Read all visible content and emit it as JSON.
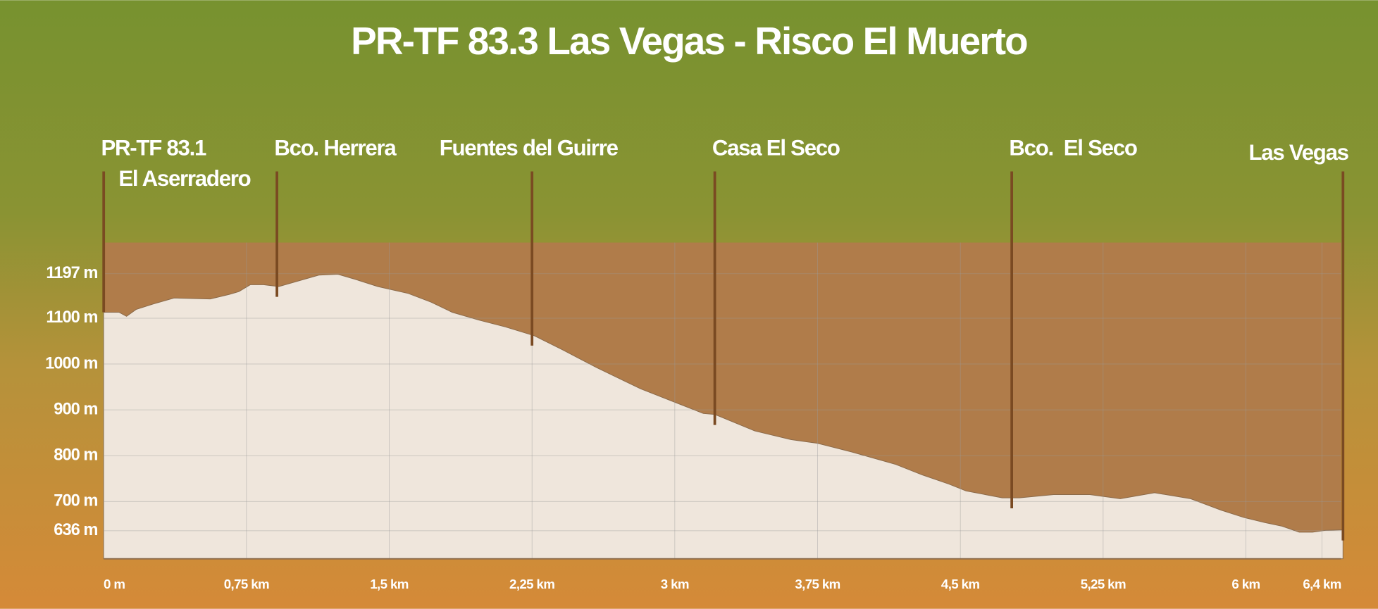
{
  "chart_data": {
    "type": "area",
    "title": "PR-TF 83.3 Las Vegas - Risco El Muerto",
    "xlim": [
      0,
      6.5
    ],
    "ylim": [
      575,
      1265
    ],
    "xticks": [
      {
        "value": 0,
        "label": "0 m"
      },
      {
        "value": 0.75,
        "label": "0,75 km"
      },
      {
        "value": 1.5,
        "label": "1,5 km"
      },
      {
        "value": 2.25,
        "label": "2,25 km"
      },
      {
        "value": 3,
        "label": "3 km"
      },
      {
        "value": 3.75,
        "label": "3,75 km"
      },
      {
        "value": 4.5,
        "label": "4,5 km"
      },
      {
        "value": 5.25,
        "label": "5,25 km"
      },
      {
        "value": 6,
        "label": "6 km"
      },
      {
        "value": 6.4,
        "label": "6,4 km"
      }
    ],
    "yticks": [
      {
        "value": 636,
        "label": "636 m"
      },
      {
        "value": 700,
        "label": "700 m"
      },
      {
        "value": 800,
        "label": "800 m"
      },
      {
        "value": 900,
        "label": "900 m"
      },
      {
        "value": 1000,
        "label": "1000 m"
      },
      {
        "value": 1100,
        "label": "1100 m"
      },
      {
        "value": 1197,
        "label": "1197 m"
      }
    ],
    "grid": true,
    "x": [
      0,
      0.08,
      0.12,
      0.17,
      0.26,
      0.37,
      0.56,
      0.66,
      0.71,
      0.77,
      0.84,
      0.92,
      1.02,
      1.13,
      1.23,
      1.32,
      1.44,
      1.6,
      1.72,
      1.83,
      1.97,
      2.11,
      2.26,
      2.41,
      2.59,
      2.82,
      3.01,
      3.15,
      3.21,
      3.42,
      3.61,
      3.75,
      3.93,
      4.16,
      4.3,
      4.44,
      4.53,
      4.72,
      4.81,
      4.99,
      5.18,
      5.34,
      5.52,
      5.71,
      5.87,
      5.99,
      6.1,
      6.19,
      6.28,
      6.35,
      6.42,
      6.51
    ],
    "values": [
      1113,
      1113,
      1104,
      1119,
      1131,
      1144,
      1142,
      1152,
      1158,
      1173,
      1173,
      1169,
      1181,
      1194,
      1196,
      1185,
      1169,
      1154,
      1135,
      1113,
      1096,
      1081,
      1062,
      1031,
      992,
      946,
      915,
      892,
      890,
      854,
      835,
      827,
      808,
      781,
      758,
      738,
      723,
      708,
      708,
      715,
      715,
      706,
      719,
      706,
      681,
      665,
      654,
      646,
      633,
      633,
      637,
      638
    ],
    "color": "#efe6dc",
    "background_color": "#b07c4a",
    "waypoint_color": "#7a4a22",
    "waypoints": [
      {
        "x": 0,
        "label": [
          "PR-TF 83.1",
          "El Aserradero"
        ]
      },
      {
        "x": 0.91,
        "label": [
          "Bco. Herrera"
        ]
      },
      {
        "x": 2.25,
        "label": [
          "Fuentes del Guirre"
        ]
      },
      {
        "x": 3.21,
        "label": [
          "Casa El Seco"
        ]
      },
      {
        "x": 4.77,
        "label": [
          "Bco.  El Seco"
        ]
      },
      {
        "x": 6.51,
        "label": [
          "Las Vegas"
        ]
      }
    ]
  }
}
